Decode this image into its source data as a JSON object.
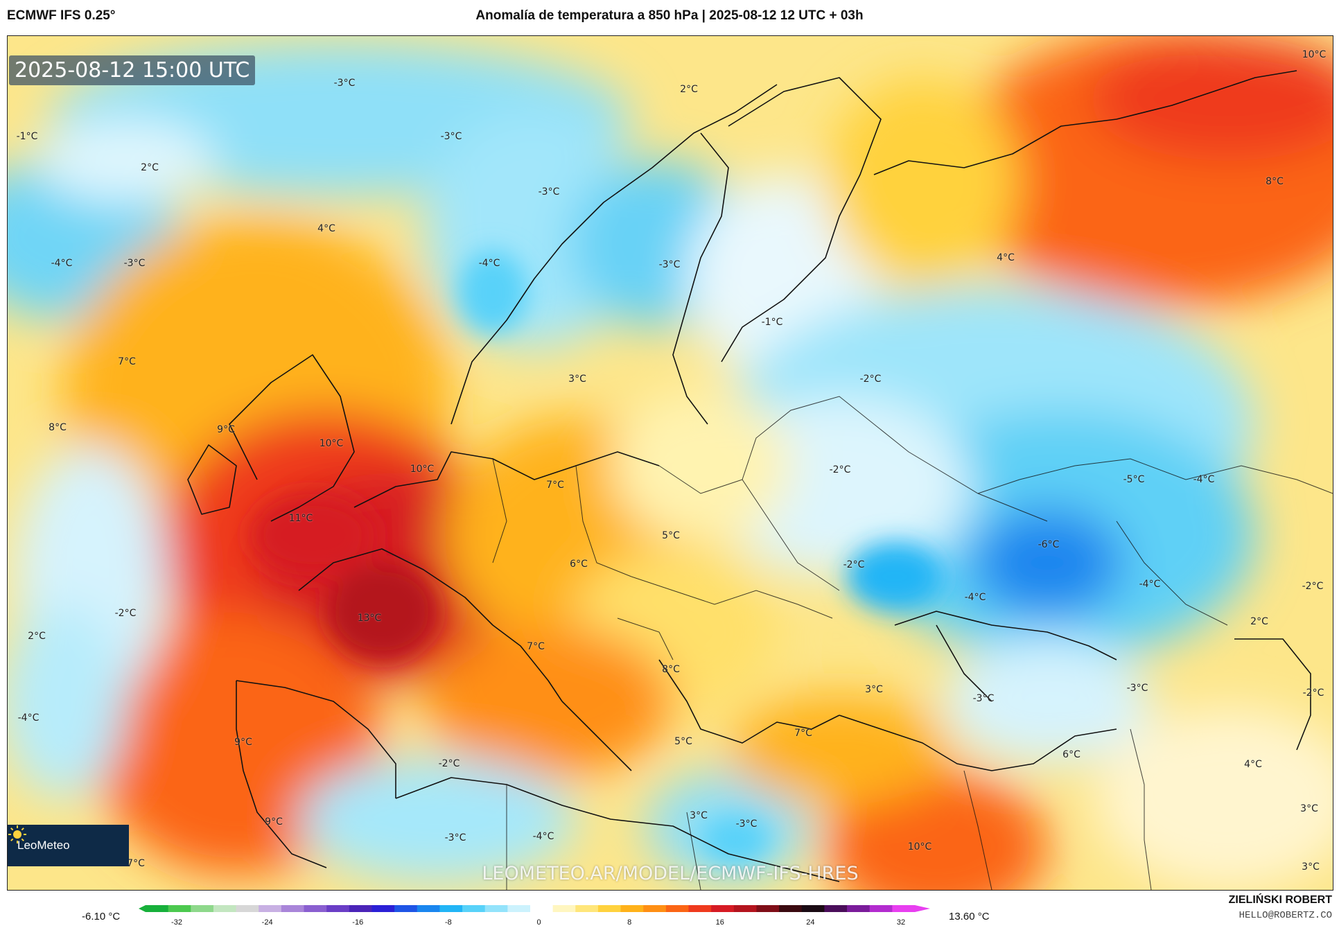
{
  "header": {
    "model": "ECMWF IFS 0.25°",
    "title": "Anomalía de temperatura a 850 hPa | 2025-08-12 12 UTC + 03h"
  },
  "map": {
    "valid_time": "2025-08-12 15:00 UTC",
    "watermark": "LEOMETEO.AR/MODEL/ECMWF-IFS-HRES",
    "logo_text": "LeoMeteo",
    "labels": [
      {
        "id": "north-atlantic-w",
        "text": "-1°C"
      },
      {
        "id": "iceland-s",
        "text": "2°C"
      },
      {
        "id": "norwegian-sea-w",
        "text": "-3°C"
      },
      {
        "id": "norwegian-sea-e",
        "text": "-3°C"
      },
      {
        "id": "barents-w",
        "text": "2°C"
      },
      {
        "id": "barents-e",
        "text": "10°C"
      },
      {
        "id": "faroe",
        "text": "4°C"
      },
      {
        "id": "atlantic-1",
        "text": "-4°C"
      },
      {
        "id": "atlantic-2",
        "text": "-3°C"
      },
      {
        "id": "norway-coast",
        "text": "-3°C"
      },
      {
        "id": "norway-sw",
        "text": "-4°C"
      },
      {
        "id": "sweden",
        "text": "-3°C"
      },
      {
        "id": "russia-n",
        "text": "8°C"
      },
      {
        "id": "russia-c",
        "text": "4°C"
      },
      {
        "id": "baltic",
        "text": "-1°C"
      },
      {
        "id": "atlantic-3",
        "text": "7°C"
      },
      {
        "id": "atlantic-4",
        "text": "8°C"
      },
      {
        "id": "ireland",
        "text": "9°C"
      },
      {
        "id": "england",
        "text": "10°C"
      },
      {
        "id": "denmark",
        "text": "3°C"
      },
      {
        "id": "belarus",
        "text": "-2°C"
      },
      {
        "id": "netherlands",
        "text": "10°C"
      },
      {
        "id": "germany",
        "text": "7°C"
      },
      {
        "id": "poland-e",
        "text": "-2°C"
      },
      {
        "id": "ukraine-1",
        "text": "-5°C"
      },
      {
        "id": "ukraine-2",
        "text": "-4°C"
      },
      {
        "id": "channel",
        "text": "11°C"
      },
      {
        "id": "czech",
        "text": "5°C"
      },
      {
        "id": "ukraine-3",
        "text": "-6°C"
      },
      {
        "id": "switzerland",
        "text": "6°C"
      },
      {
        "id": "romania",
        "text": "-2°C"
      },
      {
        "id": "russia-s",
        "text": "-4°C"
      },
      {
        "id": "black-sea",
        "text": "-4°C"
      },
      {
        "id": "kazakh",
        "text": "-2°C"
      },
      {
        "id": "caspian-n",
        "text": "2°C"
      },
      {
        "id": "atlantic-5",
        "text": "-2°C"
      },
      {
        "id": "atlantic-6",
        "text": "2°C"
      },
      {
        "id": "france",
        "text": "13°C"
      },
      {
        "id": "italy-n",
        "text": "7°C"
      },
      {
        "id": "balkans",
        "text": "8°C"
      },
      {
        "id": "turkey-w",
        "text": "3°C"
      },
      {
        "id": "turkey-n",
        "text": "-3°C"
      },
      {
        "id": "caucasus",
        "text": "-3°C"
      },
      {
        "id": "caspian",
        "text": "-2°C"
      },
      {
        "id": "atlantic-7",
        "text": "-4°C"
      },
      {
        "id": "portugal",
        "text": "9°C"
      },
      {
        "id": "greece",
        "text": "5°C"
      },
      {
        "id": "aegean",
        "text": "7°C"
      },
      {
        "id": "cyprus",
        "text": "6°C"
      },
      {
        "id": "iraq",
        "text": "4°C"
      },
      {
        "id": "med-w",
        "text": "-2°C"
      },
      {
        "id": "morocco",
        "text": "9°C"
      },
      {
        "id": "algeria",
        "text": "-3°C"
      },
      {
        "id": "tunisia",
        "text": "-4°C"
      },
      {
        "id": "libya-n",
        "text": "3°C"
      },
      {
        "id": "libya",
        "text": "-3°C"
      },
      {
        "id": "egypt",
        "text": "10°C"
      },
      {
        "id": "iran-1",
        "text": "3°C"
      },
      {
        "id": "iran-2",
        "text": "3°C"
      },
      {
        "id": "sw-corner",
        "text": "7°C"
      }
    ]
  },
  "legend": {
    "min_value": "-6.10 °C",
    "max_value": "13.60 °C",
    "ticks": [
      "-32",
      "-24",
      "-16",
      "-8",
      "0",
      "8",
      "16",
      "24",
      "32"
    ],
    "colors": [
      "#17b03b",
      "#4cc94f",
      "#8ed88b",
      "#c3e6c0",
      "#d7d7d7",
      "#c8b0e3",
      "#a985d9",
      "#8a5fd0",
      "#6a3ec6",
      "#4b24b8",
      "#2b20d6",
      "#1f55e6",
      "#1a86ef",
      "#22b5f6",
      "#58d2f9",
      "#93e3fb",
      "#ccf2fd",
      "#ffffff",
      "#fff6c0",
      "#ffe67a",
      "#ffd23e",
      "#ffb21a",
      "#ff8f14",
      "#fb6515",
      "#ef3a1e",
      "#d61b24",
      "#b4141e",
      "#7f0e18",
      "#3b0a10",
      "#1b0b14",
      "#4a0e5a",
      "#7a1c9a",
      "#b32ccf",
      "#e83ff0"
    ]
  },
  "author": {
    "name": "ZIELIŃSKI ROBERT",
    "email": "HELLO@ROBERTZ.CO"
  }
}
